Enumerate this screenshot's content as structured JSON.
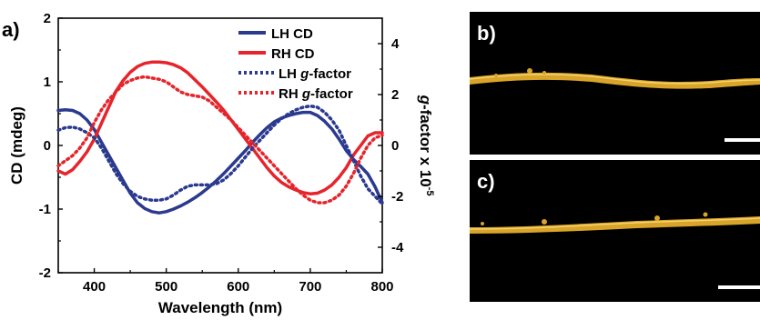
{
  "panel_labels": {
    "a": "a)",
    "b": "b)",
    "c": "c)"
  },
  "colors": {
    "lh": "#2b3a8f",
    "rh": "#e5252b",
    "panel_bg": "#000000",
    "fiber": "#d9a42a",
    "scale_bar": "#ffffff"
  },
  "chart_data": {
    "type": "line",
    "title": "",
    "xlabel": "Wavelength (nm)",
    "ylabel": "CD (mdeg)",
    "y2label_main": "g",
    "y2label_rest": "-factor x 10",
    "y2label_exp": "-5",
    "xlim": [
      350,
      800
    ],
    "ylim": [
      -2,
      2
    ],
    "y2lim": [
      -5,
      5
    ],
    "x_ticks": [
      "400",
      "500",
      "600",
      "700",
      "800"
    ],
    "y_ticks": [
      "-2",
      "-1",
      "0",
      "1",
      "2"
    ],
    "y2_ticks": [
      "-4",
      "-2",
      "0",
      "2",
      "4"
    ],
    "legend_position": "top-right",
    "series": [
      {
        "name": "LH CD",
        "axis": "left",
        "style": "solid",
        "color": "#2b3a8f",
        "x": [
          350,
          360,
          370,
          380,
          390,
          400,
          410,
          420,
          430,
          440,
          450,
          460,
          470,
          480,
          490,
          500,
          510,
          520,
          530,
          540,
          550,
          560,
          570,
          580,
          590,
          600,
          610,
          620,
          630,
          640,
          650,
          660,
          670,
          680,
          690,
          700,
          710,
          720,
          730,
          740,
          750,
          760,
          770,
          780,
          790,
          800
        ],
        "y": [
          0.55,
          0.56,
          0.55,
          0.5,
          0.4,
          0.25,
          0.05,
          -0.15,
          -0.35,
          -0.55,
          -0.75,
          -0.9,
          -0.99,
          -1.04,
          -1.06,
          -1.04,
          -1.0,
          -0.95,
          -0.89,
          -0.82,
          -0.74,
          -0.65,
          -0.55,
          -0.44,
          -0.32,
          -0.2,
          -0.08,
          0.05,
          0.17,
          0.28,
          0.37,
          0.43,
          0.47,
          0.5,
          0.52,
          0.52,
          0.47,
          0.38,
          0.26,
          0.1,
          -0.08,
          -0.22,
          -0.33,
          -0.45,
          -0.65,
          -0.9
        ]
      },
      {
        "name": "RH CD",
        "axis": "left",
        "style": "solid",
        "color": "#e5252b",
        "x": [
          350,
          360,
          370,
          380,
          390,
          400,
          410,
          420,
          430,
          440,
          450,
          460,
          470,
          480,
          490,
          500,
          510,
          520,
          530,
          540,
          550,
          560,
          570,
          580,
          590,
          600,
          610,
          620,
          630,
          640,
          650,
          660,
          670,
          680,
          690,
          700,
          710,
          720,
          730,
          740,
          750,
          760,
          770,
          780,
          790,
          800
        ],
        "y": [
          -0.4,
          -0.45,
          -0.38,
          -0.25,
          -0.1,
          0.1,
          0.35,
          0.6,
          0.85,
          1.02,
          1.15,
          1.24,
          1.29,
          1.31,
          1.31,
          1.3,
          1.27,
          1.22,
          1.14,
          1.03,
          0.92,
          0.8,
          0.68,
          0.55,
          0.4,
          0.25,
          0.1,
          -0.05,
          -0.2,
          -0.35,
          -0.48,
          -0.58,
          -0.65,
          -0.7,
          -0.74,
          -0.76,
          -0.75,
          -0.7,
          -0.62,
          -0.5,
          -0.35,
          -0.15,
          0.0,
          0.15,
          0.2,
          0.2
        ]
      },
      {
        "name": "LH g-factor",
        "axis": "right",
        "style": "dotted",
        "color": "#2b3a8f",
        "x": [
          350,
          360,
          370,
          380,
          390,
          400,
          410,
          420,
          430,
          440,
          450,
          460,
          470,
          480,
          490,
          500,
          510,
          520,
          530,
          540,
          550,
          560,
          570,
          580,
          590,
          600,
          610,
          620,
          630,
          640,
          650,
          660,
          670,
          680,
          690,
          700,
          710,
          720,
          730,
          740,
          750,
          760,
          770,
          780,
          790,
          800
        ],
        "y": [
          0.6,
          0.7,
          0.72,
          0.65,
          0.5,
          0.3,
          -0.1,
          -0.6,
          -1.1,
          -1.5,
          -1.8,
          -2.0,
          -2.1,
          -2.15,
          -2.15,
          -2.1,
          -1.95,
          -1.75,
          -1.6,
          -1.55,
          -1.55,
          -1.55,
          -1.5,
          -1.35,
          -1.1,
          -0.8,
          -0.45,
          -0.1,
          0.2,
          0.5,
          0.8,
          1.05,
          1.25,
          1.4,
          1.5,
          1.55,
          1.5,
          1.3,
          1.0,
          0.6,
          0.0,
          -0.6,
          -1.2,
          -1.7,
          -2.0,
          -2.3
        ]
      },
      {
        "name": "RH g-factor",
        "axis": "right",
        "style": "dotted",
        "color": "#e5252b",
        "x": [
          350,
          360,
          370,
          380,
          390,
          400,
          410,
          420,
          430,
          440,
          450,
          460,
          470,
          480,
          490,
          500,
          510,
          520,
          530,
          540,
          550,
          560,
          570,
          580,
          590,
          600,
          610,
          620,
          630,
          640,
          650,
          660,
          670,
          680,
          690,
          700,
          710,
          720,
          730,
          740,
          750,
          760,
          770,
          780,
          790,
          800
        ],
        "y": [
          -0.8,
          -0.6,
          -0.4,
          -0.1,
          0.3,
          0.9,
          1.4,
          1.8,
          2.1,
          2.4,
          2.55,
          2.65,
          2.7,
          2.65,
          2.6,
          2.5,
          2.3,
          2.1,
          2.0,
          1.95,
          1.9,
          1.75,
          1.5,
          1.25,
          1.0,
          0.7,
          0.4,
          0.1,
          -0.2,
          -0.5,
          -0.8,
          -1.1,
          -1.4,
          -1.7,
          -1.95,
          -2.15,
          -2.25,
          -2.25,
          -2.15,
          -1.95,
          -1.6,
          -1.1,
          -0.5,
          0.0,
          0.3,
          0.4
        ]
      }
    ]
  }
}
